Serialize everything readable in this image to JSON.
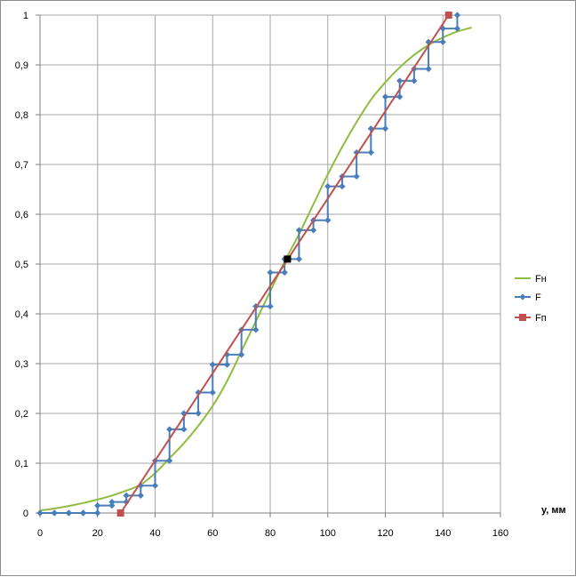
{
  "chart_data": {
    "type": "line",
    "title": "",
    "xlabel": "y, мм",
    "ylabel": "",
    "xlim": [
      0,
      160
    ],
    "ylim": [
      0,
      1
    ],
    "x_ticks": [
      0,
      20,
      40,
      60,
      80,
      100,
      120,
      140,
      160
    ],
    "y_ticks": [
      {
        "value": 0,
        "label": "0"
      },
      {
        "value": 0.1,
        "label": "0,1"
      },
      {
        "value": 0.2,
        "label": "0,2"
      },
      {
        "value": 0.3,
        "label": "0,3"
      },
      {
        "value": 0.4,
        "label": "0,4"
      },
      {
        "value": 0.5,
        "label": "0,5"
      },
      {
        "value": 0.6,
        "label": "0,6"
      },
      {
        "value": 0.7,
        "label": "0,7"
      },
      {
        "value": 0.8,
        "label": "0,8"
      },
      {
        "value": 0.9,
        "label": "0,9"
      },
      {
        "value": 1,
        "label": "1"
      }
    ],
    "grid": true,
    "legend_position": "right",
    "median_point": {
      "x": 86,
      "y": 0.51,
      "color": "#000000"
    },
    "series": [
      {
        "name": "Fн",
        "kind": "smooth-line",
        "color": "#8fbc3f",
        "x": [
          0,
          5,
          10,
          15,
          20,
          25,
          30,
          35,
          40,
          45,
          50,
          55,
          60,
          65,
          70,
          75,
          80,
          85,
          90,
          95,
          100,
          105,
          110,
          115,
          120,
          125,
          130,
          135,
          140,
          145,
          150
        ],
        "y": [
          0.005,
          0.009,
          0.014,
          0.02,
          0.027,
          0.035,
          0.045,
          0.057,
          0.08,
          0.11,
          0.14,
          0.175,
          0.215,
          0.265,
          0.325,
          0.385,
          0.445,
          0.505,
          0.56,
          0.62,
          0.68,
          0.735,
          0.785,
          0.83,
          0.865,
          0.895,
          0.92,
          0.94,
          0.955,
          0.967,
          0.975
        ]
      },
      {
        "name": "F",
        "kind": "step",
        "color": "#4a7ebb",
        "x": [
          0,
          5,
          10,
          15,
          20,
          25,
          30,
          35,
          40,
          45,
          50,
          55,
          60,
          65,
          70,
          75,
          80,
          85,
          90,
          95,
          100,
          105,
          110,
          115,
          120,
          125,
          130,
          135,
          140,
          145
        ],
        "y": [
          0,
          0,
          0,
          0,
          0.015,
          0.022,
          0.035,
          0.055,
          0.105,
          0.168,
          0.2,
          0.242,
          0.298,
          0.318,
          0.368,
          0.415,
          0.483,
          0.51,
          0.568,
          0.588,
          0.656,
          0.676,
          0.724,
          0.772,
          0.836,
          0.868,
          0.892,
          0.946,
          0.973,
          1.0
        ]
      },
      {
        "name": "Fп",
        "kind": "line",
        "color": "#c0504d",
        "x": [
          28,
          142
        ],
        "y": [
          0,
          1
        ]
      }
    ]
  }
}
